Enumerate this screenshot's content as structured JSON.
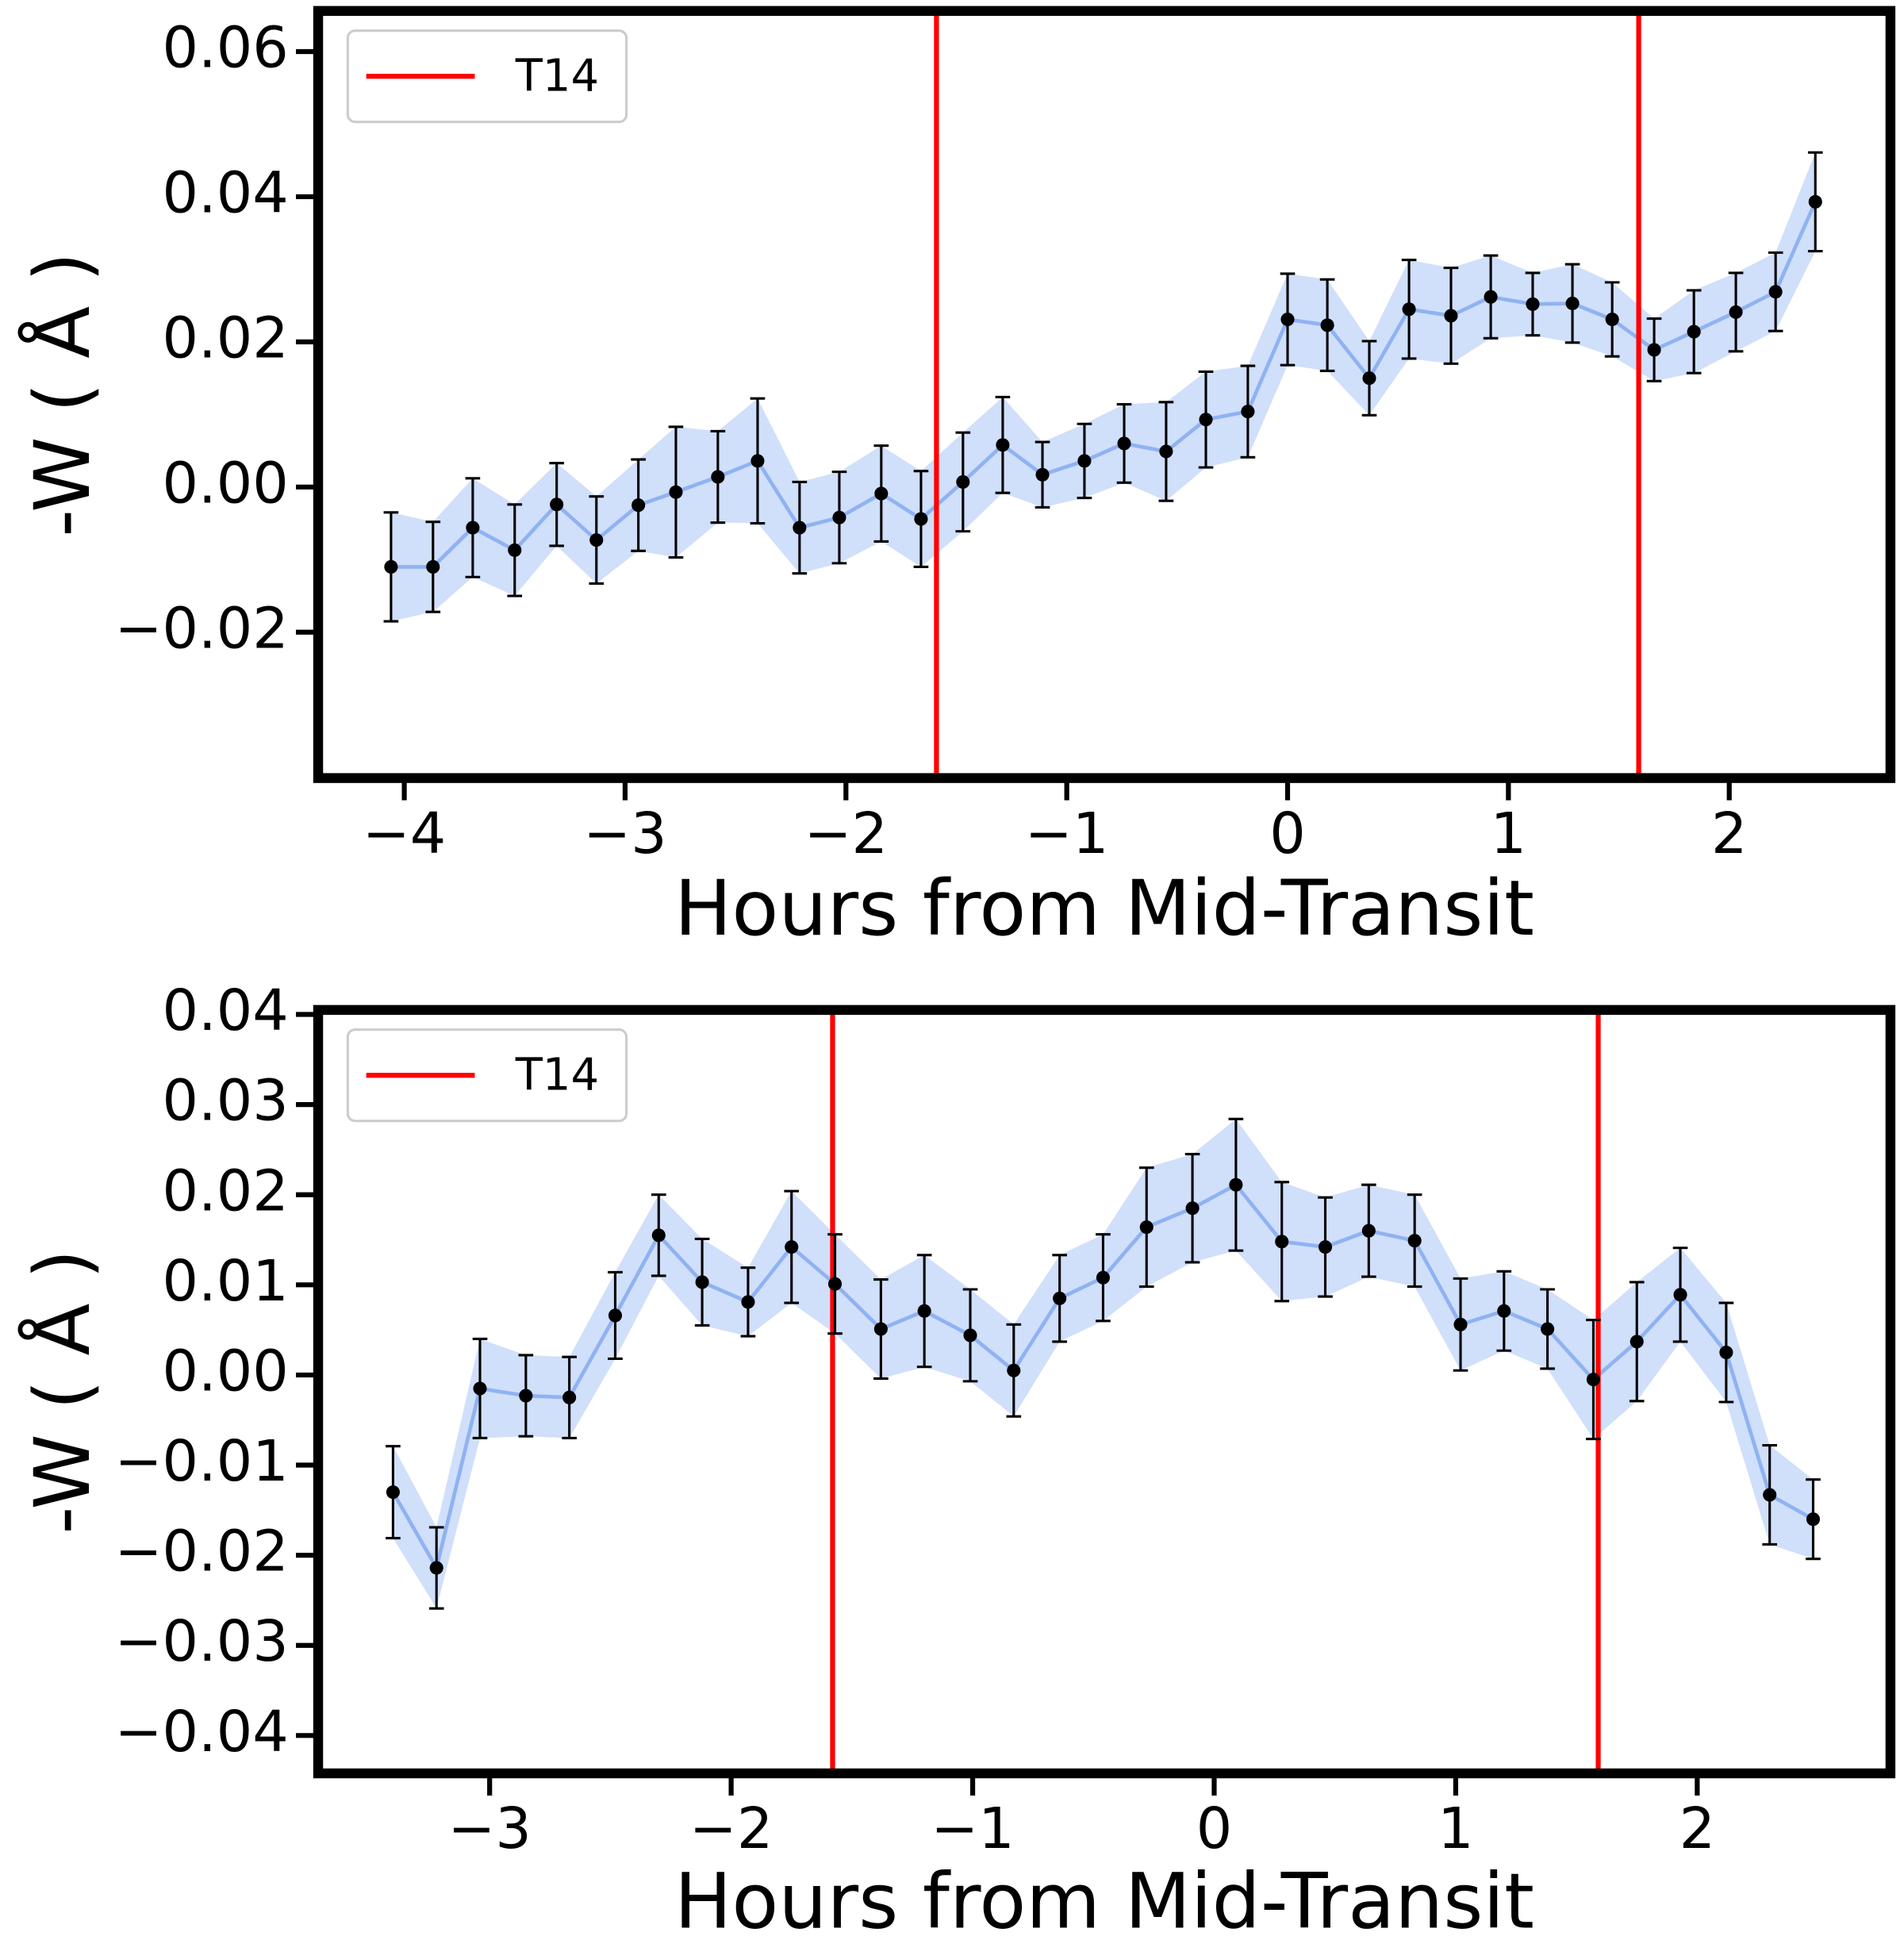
{
  "chart_data": [
    {
      "type": "errorbar",
      "xlabel": "Hours from Mid-Transit",
      "ylabel": "-W ( Å )",
      "x": [
        -4.06,
        -3.87,
        -3.69,
        -3.5,
        -3.31,
        -3.13,
        -2.94,
        -2.77,
        -2.58,
        -2.4,
        -2.21,
        -2.03,
        -1.84,
        -1.66,
        -1.47,
        -1.29,
        -1.11,
        -0.92,
        -0.74,
        -0.55,
        -0.37,
        -0.18,
        0,
        0.18,
        0.37,
        0.55,
        0.74,
        0.92,
        1.11,
        1.29,
        1.47,
        1.66,
        1.84,
        2.03,
        2.21,
        2.39
      ],
      "values": [
        -0.011,
        -0.011,
        -0.0056,
        -0.0087,
        -0.0024,
        -0.0073,
        -0.0025,
        -0.0007,
        0.0014,
        0.0036,
        -0.0056,
        -0.0042,
        -0.0009,
        -0.0044,
        0.0007,
        0.0058,
        0.0017,
        0.0036,
        0.006,
        0.0049,
        0.0093,
        0.0104,
        0.0231,
        0.0223,
        0.015,
        0.0245,
        0.0236,
        0.0262,
        0.0252,
        0.0253,
        0.0231,
        0.0189,
        0.0214,
        0.0241,
        0.0269,
        0.0393
      ],
      "errors": [
        0.0075,
        0.0062,
        0.0068,
        0.0063,
        0.0057,
        0.006,
        0.0063,
        0.009,
        0.0063,
        0.0086,
        0.0063,
        0.0063,
        0.0066,
        0.0066,
        0.0068,
        0.0066,
        0.0045,
        0.0051,
        0.0054,
        0.0068,
        0.0066,
        0.0063,
        0.0063,
        0.0063,
        0.0051,
        0.0068,
        0.0066,
        0.0057,
        0.0043,
        0.0054,
        0.0051,
        0.0043,
        0.0057,
        0.0054,
        0.0054,
        0.0068
      ],
      "color": "#000000",
      "sample_color": "#6495ed",
      "lines": {
        "name": "T14",
        "color": "#ff0000",
        "x": [
          -1.59,
          1.59
        ]
      },
      "legend": "upper left",
      "xlim": [
        -4.39,
        2.73
      ],
      "xticks": [
        {
          "value": -4,
          "label": "−4"
        },
        {
          "value": -3,
          "label": "−3"
        },
        {
          "value": -2,
          "label": "−2"
        },
        {
          "value": -1,
          "label": "−1"
        },
        0,
        1,
        2
      ],
      "ylim": [
        -0.0401,
        0.0656
      ],
      "yticks": [
        {
          "value": -0.02,
          "label": "−0.02"
        },
        {
          "value": 0,
          "label": "0.00"
        },
        0.02,
        0.04,
        0.06
      ]
    },
    {
      "type": "errorbar",
      "xlabel": "Hours from Mid-Transit",
      "ylabel": "-W ( Å )",
      "x": [
        -3.4,
        -3.22,
        -3.04,
        -2.85,
        -2.67,
        -2.48,
        -2.3,
        -2.12,
        -1.93,
        -1.75,
        -1.57,
        -1.38,
        -1.2,
        -1.01,
        -0.83,
        -0.64,
        -0.46,
        -0.28,
        -0.09,
        0.09,
        0.28,
        0.46,
        0.64,
        0.83,
        1.02,
        1.2,
        1.38,
        1.57,
        1.75,
        1.93,
        2.12,
        2.3,
        2.48
      ],
      "values": [
        -0.013,
        -0.0214,
        -0.0015,
        -0.0023,
        -0.0025,
        0.0066,
        0.0155,
        0.0103,
        0.0081,
        0.0142,
        0.0101,
        0.0051,
        0.0071,
        0.0044,
        0.0005,
        0.0085,
        0.0108,
        0.0164,
        0.0185,
        0.0211,
        0.0148,
        0.0142,
        0.016,
        0.0149,
        0.0056,
        0.0071,
        0.0051,
        -0.0005,
        0.0037,
        0.0089,
        0.0025,
        -0.0133,
        -0.016
      ],
      "errors": [
        0.0051,
        0.0045,
        0.0055,
        0.0045,
        0.0045,
        0.0048,
        0.0045,
        0.0048,
        0.0038,
        0.0062,
        0.0055,
        0.0055,
        0.0062,
        0.0051,
        0.0051,
        0.0048,
        0.0048,
        0.0066,
        0.006,
        0.0073,
        0.0066,
        0.0055,
        0.0051,
        0.0051,
        0.0051,
        0.0044,
        0.0044,
        0.0066,
        0.0066,
        0.0052,
        0.0055,
        0.0055,
        0.0044
      ],
      "color": "#000000",
      "sample_color": "#6495ed",
      "lines": {
        "name": "T14",
        "color": "#ff0000",
        "x": [
          -1.58,
          1.59
        ]
      },
      "legend": "upper left",
      "xlim": [
        -3.71,
        2.8
      ],
      "xticks": [
        {
          "value": -3,
          "label": "−3"
        },
        {
          "value": -2,
          "label": "−2"
        },
        {
          "value": -1,
          "label": "−1"
        },
        0,
        1,
        2
      ],
      "ylim": [
        -0.0442,
        0.0405
      ],
      "yticks": [
        {
          "value": -0.04,
          "label": "−0.04"
        },
        {
          "value": -0.03,
          "label": "−0.03"
        },
        {
          "value": -0.02,
          "label": "−0.02"
        },
        {
          "value": -0.01,
          "label": "−0.01"
        },
        {
          "value": 0,
          "label": "0.00"
        },
        0.01,
        0.02,
        0.03,
        0.04
      ]
    }
  ]
}
